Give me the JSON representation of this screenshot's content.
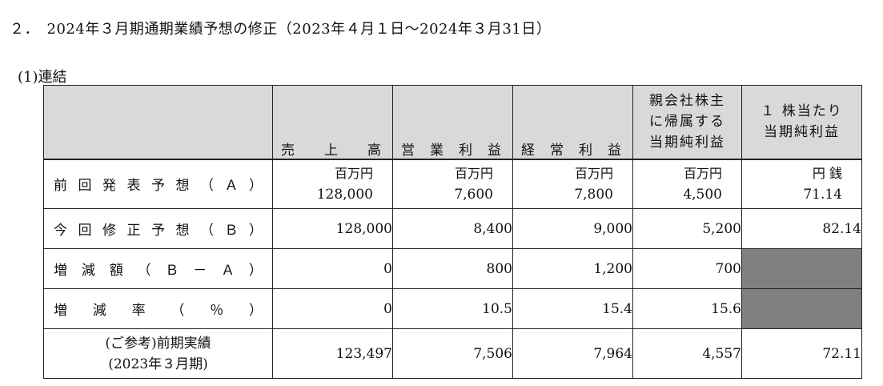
{
  "heading": "２．　2024年３月期通期業績予想の修正（2023年４月１日～2024年３月31日）",
  "subheading": "(1)連結",
  "columns": {
    "sales": [
      "売",
      "上",
      "高"
    ],
    "operating": [
      "営",
      "業",
      "利",
      "益"
    ],
    "ordinary": [
      "経",
      "常",
      "利",
      "益"
    ],
    "net_lines": [
      "親会社株主",
      "に帰属する",
      "当期純利益"
    ],
    "eps_lines": [
      "１ 株当たり",
      "当期純利益"
    ]
  },
  "units": {
    "million_yen": "百万円",
    "yen_sen": "円 銭"
  },
  "rows": [
    {
      "label_chars": [
        "前",
        "回",
        "発",
        "表",
        "予",
        "想",
        "（",
        "Ａ",
        "）"
      ],
      "sales": "128,000",
      "operating": "7,600",
      "ordinary": "7,800",
      "net": "4,500",
      "eps": "71.14"
    },
    {
      "label_chars": [
        "今",
        "回",
        "修",
        "正",
        "予",
        "想",
        "（",
        "Ｂ",
        "）"
      ],
      "sales": "128,000",
      "operating": "8,400",
      "ordinary": "9,000",
      "net": "5,200",
      "eps": "82.14"
    },
    {
      "label_chars": [
        "増",
        "減",
        "額",
        "（",
        "Ｂ",
        "－",
        "Ａ",
        "）"
      ],
      "sales": "0",
      "operating": "800",
      "ordinary": "1,200",
      "net": "700",
      "eps": ""
    },
    {
      "label_chars": [
        "増",
        "減",
        "率",
        "（",
        "％",
        "）"
      ],
      "sales": "0",
      "operating": "10.5",
      "ordinary": "15.4",
      "net": "15.6",
      "eps": ""
    },
    {
      "label_lines": [
        "(ご参考)前期実績",
        "(2023年３月期)"
      ],
      "sales": "123,497",
      "operating": "7,506",
      "ordinary": "7,964",
      "net": "4,557",
      "eps": "72.11"
    }
  ]
}
